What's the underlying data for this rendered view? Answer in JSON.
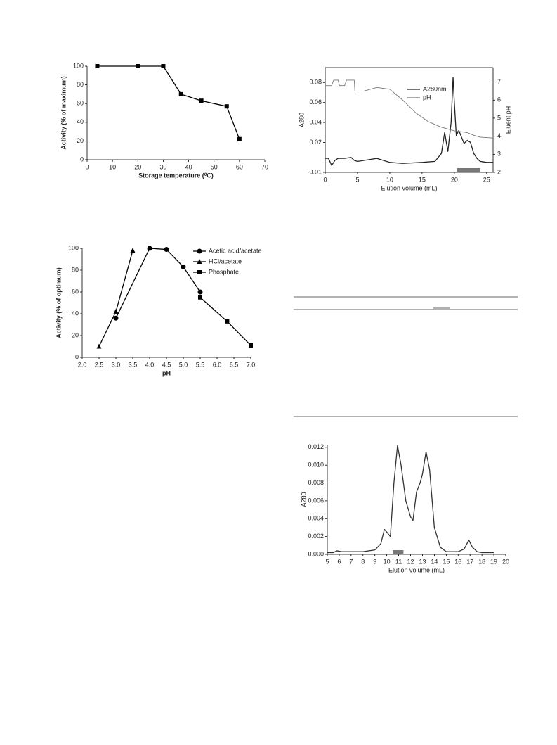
{
  "chart_data": [
    {
      "type": "line",
      "x_label": "Storage temperature (⁰C)",
      "y_label": "Activity (% of maximum)",
      "x": [
        4,
        20,
        30,
        37,
        45,
        55,
        60
      ],
      "values": [
        100,
        100,
        100,
        70,
        63,
        57,
        22
      ],
      "color": "#000000",
      "marker": "square",
      "xlim": [
        0,
        70
      ],
      "xticks": [
        0,
        10,
        20,
        30,
        40,
        50,
        60,
        70
      ],
      "ylim": [
        0,
        100
      ],
      "yticks": [
        0,
        20,
        40,
        60,
        80,
        100
      ]
    },
    {
      "type": "line",
      "x_label": "pH",
      "y_label": "Activity (% of optimum)",
      "legend": "top-right",
      "series": [
        {
          "name": "Acetic acid/acetate",
          "color": "#000000",
          "marker": "circle",
          "x": [
            3.0,
            4.0,
            4.5,
            5.0,
            5.5
          ],
          "values": [
            36,
            100,
            99,
            83,
            60
          ]
        },
        {
          "name": "HCl/acetate",
          "color": "#000000",
          "marker": "triangle",
          "x": [
            2.5,
            3.0,
            3.5
          ],
          "values": [
            10,
            42,
            98
          ]
        },
        {
          "name": "Phosphate",
          "color": "#000000",
          "marker": "square",
          "x": [
            5.5,
            6.3,
            7.0
          ],
          "values": [
            55,
            33,
            11
          ]
        }
      ],
      "xlim": [
        2,
        7
      ],
      "xticks": [
        {
          "value": 2,
          "label": "2.0"
        },
        2.5,
        {
          "value": 3,
          "label": "3.0"
        },
        3.5,
        {
          "value": 4,
          "label": "4.0"
        },
        4.5,
        {
          "value": 5,
          "label": "5.0"
        },
        5.5,
        {
          "value": 6,
          "label": "6.0"
        },
        6.5,
        {
          "value": 7,
          "label": "7.0"
        }
      ],
      "ylim": [
        0,
        100
      ],
      "yticks": [
        0,
        20,
        40,
        60,
        80,
        100
      ]
    },
    {
      "type": "line",
      "x_label": "Elution volume (mL)",
      "y_label": "A280",
      "y2_label": "Eluent pH",
      "legend": "top-right",
      "frame": true,
      "series": [
        {
          "name": "A280nm",
          "color": "#222222",
          "x": [
            0,
            0.5,
            1,
            1.5,
            2,
            3,
            4,
            4.5,
            5,
            6,
            8,
            10,
            12,
            15,
            17,
            18,
            18.5,
            19,
            19.5,
            19.8,
            20,
            20.3,
            20.7,
            21,
            21.5,
            22,
            22.5,
            23,
            23.5,
            24,
            25,
            26
          ],
          "values": [
            0.004,
            0.004,
            -0.003,
            0.002,
            0.004,
            0.004,
            0.005,
            0.002,
            0.001,
            0.002,
            0.004,
            0.0,
            -0.001,
            0.0,
            0.001,
            0.009,
            0.03,
            0.011,
            0.04,
            0.085,
            0.06,
            0.027,
            0.032,
            0.027,
            0.019,
            0.022,
            0.02,
            0.009,
            0.004,
            0.001,
            0.0,
            0.0
          ]
        },
        {
          "name": "pH",
          "color": "#777777",
          "axis": "y2",
          "x": [
            0,
            1,
            1.3,
            2,
            2.2,
            3,
            3.3,
            4.5,
            4.6,
            6,
            8,
            10,
            12,
            14,
            16,
            18,
            20,
            22,
            23,
            24,
            26
          ],
          "values": [
            6.8,
            6.8,
            7.1,
            7.1,
            6.8,
            6.8,
            7.1,
            7.1,
            6.5,
            6.5,
            6.7,
            6.6,
            6.0,
            5.3,
            4.8,
            4.5,
            4.3,
            4.2,
            4.05,
            3.95,
            3.9
          ]
        }
      ],
      "highlight_x": [
        20.4,
        24
      ],
      "xlim": [
        0,
        26
      ],
      "xticks": [
        0,
        5,
        10,
        15,
        20,
        25
      ],
      "ylim": [
        -0.01,
        0.095
      ],
      "yticks": [
        -0.01,
        0.02,
        0.04,
        0.06,
        0.08
      ],
      "y2lim": [
        2,
        7.8
      ],
      "y2ticks": [
        2,
        3,
        4,
        5,
        6,
        7
      ]
    },
    {
      "type": "line",
      "x_label": "Elution volume (mL)",
      "y_label": "A280",
      "x": [
        5,
        5.5,
        5.8,
        6.2,
        7,
        8,
        9,
        9.5,
        9.8,
        10,
        10.3,
        10.6,
        10.9,
        11.2,
        11.6,
        12,
        12.2,
        12.5,
        12.8,
        13,
        13.3,
        13.6,
        14,
        14.5,
        15,
        16,
        16.5,
        16.9,
        17.2,
        17.6,
        18,
        19
      ],
      "values": [
        0.0002,
        0.0002,
        0.0004,
        0.0003,
        0.0003,
        0.0003,
        0.0005,
        0.0012,
        0.0028,
        0.0025,
        0.002,
        0.008,
        0.0122,
        0.01,
        0.006,
        0.0042,
        0.0038,
        0.007,
        0.008,
        0.009,
        0.0115,
        0.0095,
        0.003,
        0.0008,
        0.0003,
        0.0003,
        0.0006,
        0.0016,
        0.0008,
        0.0003,
        0.0002,
        0.0002
      ],
      "color": "#333333",
      "highlight_x": [
        10.5,
        11.4
      ],
      "xlim": [
        5,
        20
      ],
      "xticks": [
        5,
        6,
        7,
        8,
        9,
        10,
        11,
        12,
        13,
        14,
        15,
        16,
        17,
        18,
        19,
        20
      ],
      "ylim": [
        0,
        0.0123
      ],
      "yticks": [
        {
          "value": 0,
          "label": "0.000"
        },
        0.002,
        0.004,
        0.006,
        0.008,
        {
          "value": 0.01,
          "label": "0.010"
        },
        0.012
      ]
    }
  ]
}
